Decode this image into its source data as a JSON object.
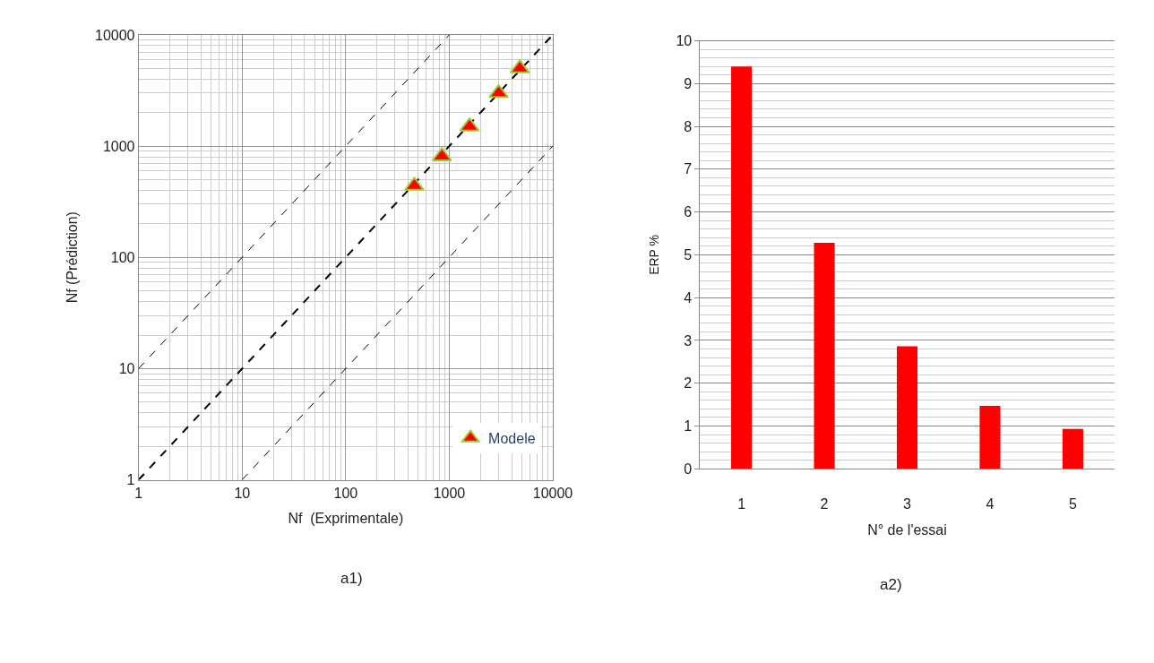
{
  "chart_data": [
    {
      "type": "scatter",
      "xlabel": "Nf  (Exprimentale)",
      "ylabel": "Nf (Prédiction)",
      "log": "xy",
      "grid": true,
      "legend": "bottom right",
      "xlim": [
        1,
        10000
      ],
      "ylim": [
        1,
        10000
      ],
      "xticks": [
        1,
        10,
        100,
        1000,
        10000
      ],
      "yticks": [
        1,
        10,
        100,
        1000,
        10000
      ],
      "annotations": [
        "a1)"
      ],
      "series": [
        {
          "name": "Modele",
          "type": "scatter",
          "marker": "triangle",
          "color": "#ff0000",
          "x": [
            460,
            850,
            1570,
            3000,
            4800
          ],
          "values": [
            440,
            810,
            1500,
            3000,
            5000
          ]
        },
        {
          "type": "line",
          "marker": "none",
          "line_style": "dashed",
          "color": "#000000",
          "x": [
            1,
            10000
          ],
          "values": [
            1,
            10000
          ]
        },
        {
          "type": "line",
          "marker": "none",
          "line_style": "dashed",
          "color": "#000000",
          "x": [
            1,
            1000
          ],
          "values": [
            10,
            10000
          ]
        },
        {
          "type": "line",
          "marker": "none",
          "line_style": "dashed",
          "color": "#000000",
          "x": [
            10,
            10000
          ],
          "values": [
            1,
            1000
          ]
        }
      ]
    },
    {
      "type": "bar",
      "xlabel": "N° de l'essai",
      "ylabel": "ERP %",
      "grid": "y",
      "ylim": [
        0,
        10
      ],
      "yticks": [
        0,
        1,
        2,
        3,
        4,
        5,
        6,
        7,
        8,
        9,
        10
      ],
      "categories": [
        "1",
        "2",
        "3",
        "4",
        "5"
      ],
      "values": [
        9.4,
        5.28,
        2.86,
        1.47,
        0.93
      ],
      "color": "#ff0000",
      "annotations": [
        "a2)"
      ]
    }
  ]
}
